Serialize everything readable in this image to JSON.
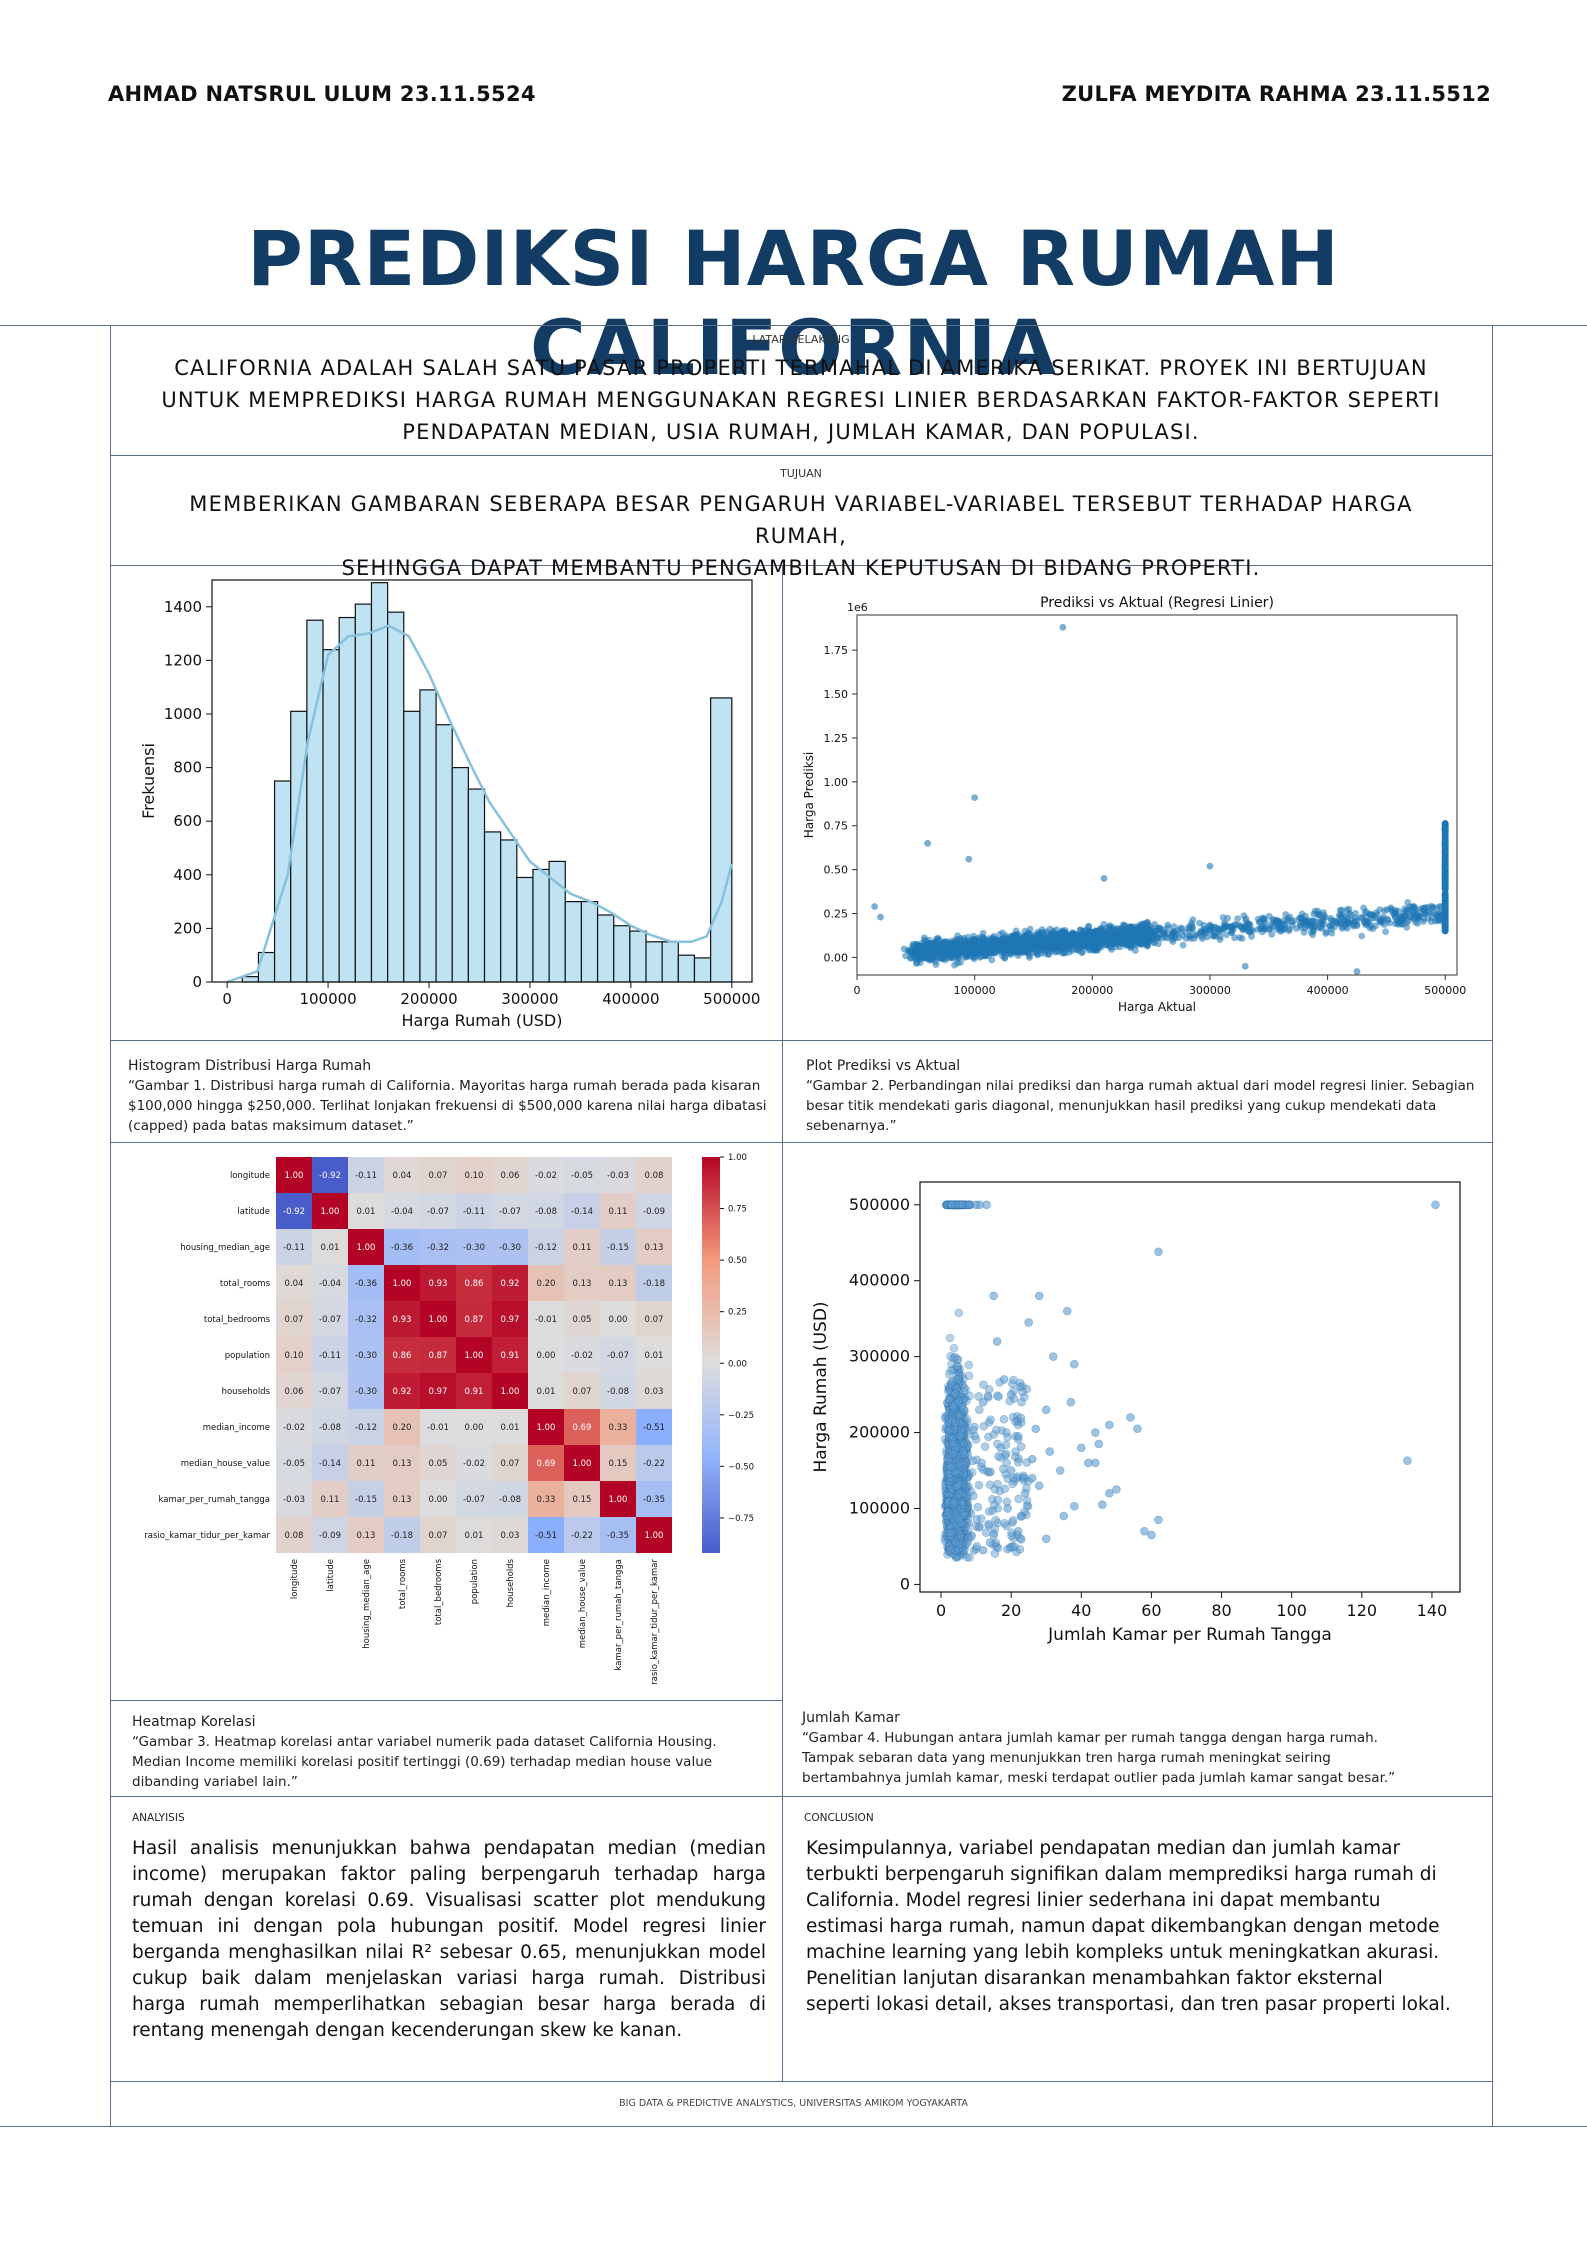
{
  "header": {
    "author_left": "AHMAD NATSRUL ULUM 23.11.5524",
    "author_right": "ZULFA MEYDITA RAHMA 23.11.5512",
    "title": "PREDIKSI HARGA RUMAH CALIFORNIA"
  },
  "latar": {
    "label": "LATAR BELAKANG",
    "lines": [
      "CALIFORNIA ADALAH SALAH SATU PASAR PROPERTI TERMAHAL DI AMERIKA SERIKAT. PROYEK INI BERTUJUAN",
      "UNTUK MEMPREDIKSI HARGA RUMAH MENGGUNAKAN REGRESI LINIER BERDASARKAN FAKTOR-FAKTOR SEPERTI",
      "PENDAPATAN MEDIAN, USIA RUMAH, JUMLAH KAMAR, DAN POPULASI."
    ]
  },
  "tujuan": {
    "label": "TUJUAN",
    "lines": [
      "MEMBERIKAN GAMBARAN SEBERAPA BESAR PENGARUH VARIABEL-VARIABEL TERSEBUT TERHADAP HARGA RUMAH,",
      "SEHINGGA DAPAT MEMBANTU PENGAMBILAN KEPUTUSAN DI BIDANG PROPERTI."
    ]
  },
  "captions": {
    "hist": {
      "title": "Histogram Distribusi Harga Rumah",
      "lines": [
        "“Gambar 1. Distribusi harga rumah di California. Mayoritas harga rumah berada pada kisaran",
        "$100,000 hingga $250,000. Terlihat lonjakan frekuensi di $500,000 karena nilai harga dibatasi",
        "(capped) pada batas maksimum dataset.”"
      ]
    },
    "pred": {
      "title": "Plot Prediksi vs Aktual",
      "lines": [
        "“Gambar 2. Perbandingan nilai prediksi dan harga rumah aktual dari model regresi linier. Sebagian",
        "besar titik mendekati garis diagonal, menunjukkan hasil prediksi yang cukup mendekati data",
        "sebenarnya.”"
      ]
    },
    "heat": {
      "title": "Heatmap Korelasi",
      "lines": [
        "“Gambar 3. Heatmap korelasi antar variabel numerik pada dataset California Housing.",
        "Median Income memiliki korelasi positif tertinggi (0.69) terhadap median house value",
        "dibanding variabel lain.”"
      ]
    },
    "rooms": {
      "title": "Jumlah Kamar",
      "lines": [
        "“Gambar 4. Hubungan antara jumlah kamar per rumah tangga dengan harga rumah.",
        "Tampak sebaran data yang menunjukkan tren harga rumah meningkat seiring",
        "bertambahnya jumlah kamar, meski terdapat outlier pada jumlah kamar sangat besar.”"
      ]
    }
  },
  "analysis": {
    "label": "ANALYISIS",
    "text": "Hasil analisis menunjukkan bahwa pendapatan median (median income) merupakan faktor paling berpengaruh terhadap harga rumah dengan korelasi 0.69. Visualisasi scatter plot mendukung temuan ini dengan pola hubungan positif. Model regresi linier berganda menghasilkan nilai R² sebesar 0.65, menunjukkan model cukup baik dalam menjelaskan variasi harga rumah. Distribusi harga rumah memperlihatkan sebagian besar harga berada di rentang menengah dengan kecenderungan skew ke kanan."
  },
  "conclusion": {
    "label": "CONCLUSION",
    "lines": [
      "Kesimpulannya, variabel pendapatan median dan jumlah kamar",
      "terbukti berpengaruh signifikan dalam memprediksi harga rumah di",
      "California. Model regresi linier sederhana ini dapat membantu",
      "estimasi harga rumah, namun dapat dikembangkan dengan metode",
      "machine learning yang lebih kompleks untuk meningkatkan akurasi.",
      "Penelitian lanjutan disarankan menambahkan faktor eksternal",
      "seperti lokasi detail, akses transportasi, dan tren pasar properti lokal."
    ]
  },
  "footer": "BIG DATA & PREDICTIVE ANALYSTICS, UNIVERSITAS AMIKOM YOGYAKARTA",
  "colors": {
    "title": "#123c63",
    "bar": "#bfe3f3",
    "kde": "#86c2dc",
    "scatter": "#1f77b4",
    "scatter_light": "#5b9bd0"
  },
  "chart_data": [
    {
      "type": "bar",
      "name": "histogram",
      "xlabel": "Harga Rumah (USD)",
      "ylabel": "Frekuensi",
      "xlim": [
        -15000,
        520000
      ],
      "ylim": [
        0,
        1500
      ],
      "xticks": [
        0,
        100000,
        200000,
        300000,
        400000,
        500000
      ],
      "yticks": [
        0,
        200,
        400,
        600,
        800,
        1000,
        1200,
        1400
      ],
      "bin_edges": [
        15000,
        31000,
        47000,
        63000,
        79000,
        95000,
        111000,
        127000,
        143000,
        159000,
        175000,
        191000,
        207000,
        223000,
        239000,
        255000,
        271000,
        287000,
        303000,
        319000,
        335000,
        351000,
        367000,
        383000,
        399000,
        415000,
        431000,
        447000,
        463000,
        479000,
        500001
      ],
      "values": [
        20,
        110,
        750,
        1010,
        1350,
        1240,
        1360,
        1410,
        1490,
        1380,
        1010,
        1090,
        960,
        800,
        720,
        560,
        530,
        390,
        420,
        450,
        300,
        300,
        250,
        210,
        190,
        150,
        150,
        100,
        90,
        1060
      ],
      "kde": [
        [
          0,
          0
        ],
        [
          30000,
          40
        ],
        [
          60000,
          400
        ],
        [
          80000,
          900
        ],
        [
          100000,
          1220
        ],
        [
          120000,
          1290
        ],
        [
          140000,
          1300
        ],
        [
          160000,
          1330
        ],
        [
          180000,
          1290
        ],
        [
          200000,
          1150
        ],
        [
          220000,
          980
        ],
        [
          240000,
          820
        ],
        [
          260000,
          670
        ],
        [
          280000,
          560
        ],
        [
          300000,
          450
        ],
        [
          320000,
          390
        ],
        [
          340000,
          330
        ],
        [
          360000,
          300
        ],
        [
          380000,
          260
        ],
        [
          400000,
          210
        ],
        [
          420000,
          175
        ],
        [
          440000,
          150
        ],
        [
          460000,
          150
        ],
        [
          475000,
          170
        ],
        [
          490000,
          300
        ],
        [
          500000,
          440
        ]
      ]
    },
    {
      "type": "scatter",
      "name": "prediksi-vs-aktual",
      "title": "Prediksi vs Aktual (Regresi Linier)",
      "xlabel": "Harga Aktual",
      "ylabel": "Harga Prediksi",
      "y_offset_label": "1e6",
      "xlim": [
        0,
        510000
      ],
      "ylim": [
        -0.1,
        1.95
      ],
      "xticks": [
        0,
        100000,
        200000,
        300000,
        400000,
        500000
      ],
      "yticks": [
        0.0,
        0.25,
        0.5,
        0.75,
        1.0,
        1.25,
        1.5,
        1.75
      ],
      "points": [
        [
          175000,
          1.88
        ],
        [
          100000,
          0.91
        ],
        [
          210000,
          0.45
        ],
        [
          60000,
          0.65
        ],
        [
          95000,
          0.56
        ],
        [
          300000,
          0.52
        ],
        [
          425000,
          -0.08
        ],
        [
          330000,
          -0.05
        ],
        [
          15000,
          0.29
        ],
        [
          20000,
          0.23
        ]
      ]
    },
    {
      "type": "heatmap",
      "name": "korelasi",
      "labels": [
        "longitude",
        "latitude",
        "housing_median_age",
        "total_rooms",
        "total_bedrooms",
        "population",
        "households",
        "median_income",
        "median_house_value",
        "kamar_per_rumah_tangga",
        "rasio_kamar_tidur_per_kamar"
      ],
      "matrix": [
        [
          1.0,
          -0.92,
          -0.11,
          0.04,
          0.07,
          0.1,
          0.06,
          -0.02,
          -0.05,
          -0.03,
          0.08
        ],
        [
          -0.92,
          1.0,
          0.01,
          -0.04,
          -0.07,
          -0.11,
          -0.07,
          -0.08,
          -0.14,
          0.11,
          -0.09
        ],
        [
          -0.11,
          0.01,
          1.0,
          -0.36,
          -0.32,
          -0.3,
          -0.3,
          -0.12,
          0.11,
          -0.15,
          0.13
        ],
        [
          0.04,
          -0.04,
          -0.36,
          1.0,
          0.93,
          0.86,
          0.92,
          0.2,
          0.13,
          0.13,
          -0.18
        ],
        [
          0.07,
          -0.07,
          -0.32,
          0.93,
          1.0,
          0.87,
          0.97,
          -0.01,
          0.05,
          0.0,
          0.07
        ],
        [
          0.1,
          -0.11,
          -0.3,
          0.86,
          0.87,
          1.0,
          0.91,
          0.0,
          -0.02,
          -0.07,
          0.01
        ],
        [
          0.06,
          -0.07,
          -0.3,
          0.92,
          0.97,
          0.91,
          1.0,
          0.01,
          0.07,
          -0.08,
          0.03
        ],
        [
          -0.02,
          -0.08,
          -0.12,
          0.2,
          -0.01,
          0.0,
          0.01,
          1.0,
          0.69,
          0.33,
          -0.51
        ],
        [
          -0.05,
          -0.14,
          0.11,
          0.13,
          0.05,
          -0.02,
          0.07,
          0.69,
          1.0,
          0.15,
          -0.22
        ],
        [
          -0.03,
          0.11,
          -0.15,
          0.13,
          0.0,
          -0.07,
          -0.08,
          0.33,
          0.15,
          1.0,
          -0.35
        ],
        [
          0.08,
          -0.09,
          0.13,
          -0.18,
          0.07,
          0.01,
          0.03,
          -0.51,
          -0.22,
          -0.35,
          1.0
        ]
      ],
      "colorbar_ticks": [
        "1.00",
        "0.75",
        "0.50",
        "0.25",
        "0.00",
        "−0.25",
        "−0.50",
        "−0.75"
      ],
      "vmin": -0.92,
      "vmax": 1.0
    },
    {
      "type": "scatter",
      "name": "jumlah-kamar",
      "xlabel": "Jumlah Kamar per Rumah Tangga",
      "ylabel": "Harga Rumah (USD)",
      "xlim": [
        -6,
        148
      ],
      "ylim": [
        -10000,
        530000
      ],
      "xticks": [
        0,
        20,
        40,
        60,
        80,
        100,
        120,
        140
      ],
      "yticks": [
        0,
        100000,
        200000,
        300000,
        400000,
        500000
      ],
      "points": [
        [
          141,
          500000
        ],
        [
          62,
          438000
        ],
        [
          133,
          163000
        ],
        [
          36,
          360000
        ],
        [
          28,
          380000
        ],
        [
          48,
          210000
        ],
        [
          54,
          220000
        ],
        [
          56,
          205000
        ],
        [
          38,
          103000
        ],
        [
          40,
          180000
        ],
        [
          46,
          105000
        ],
        [
          48,
          120000
        ],
        [
          58,
          70000
        ],
        [
          60,
          65000
        ],
        [
          62,
          85000
        ],
        [
          38,
          290000
        ],
        [
          45,
          185000
        ],
        [
          34,
          150000
        ],
        [
          28,
          130000
        ],
        [
          22,
          195000
        ],
        [
          25,
          345000
        ],
        [
          20,
          250000
        ],
        [
          30,
          230000
        ],
        [
          26,
          165000
        ],
        [
          18,
          270000
        ],
        [
          16,
          320000
        ],
        [
          24,
          120000
        ],
        [
          42,
          160000
        ],
        [
          50,
          125000
        ],
        [
          35,
          90000
        ],
        [
          30,
          60000
        ],
        [
          22,
          70000
        ],
        [
          14,
          55000
        ],
        [
          12,
          45000
        ],
        [
          20,
          150000
        ],
        [
          17,
          180000
        ],
        [
          27,
          205000
        ],
        [
          32,
          300000
        ],
        [
          44,
          160000
        ],
        [
          19,
          100000
        ],
        [
          23,
          90000
        ],
        [
          15,
          380000
        ],
        [
          13,
          500000
        ],
        [
          11,
          500000
        ],
        [
          12,
          240000
        ],
        [
          26,
          140000
        ],
        [
          31,
          175000
        ],
        [
          37,
          240000
        ],
        [
          44,
          200000
        ],
        [
          8,
          500000
        ],
        [
          6,
          500000
        ],
        [
          4,
          500000
        ],
        [
          3,
          500000
        ],
        [
          10,
          500000
        ]
      ]
    }
  ]
}
